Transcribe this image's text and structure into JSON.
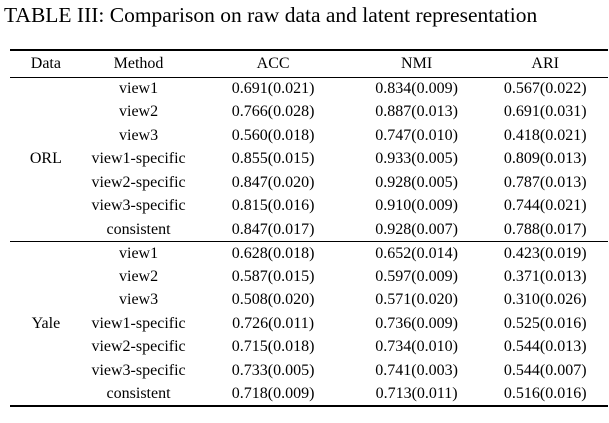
{
  "title": "TABLE III: Comparison on raw data and latent representation",
  "table": {
    "columns": [
      "Data",
      "Method",
      "ACC",
      "NMI",
      "ARI"
    ],
    "groups": [
      {
        "data": "ORL",
        "rows": [
          {
            "method": "view1",
            "acc": "0.691(0.021)",
            "nmi": "0.834(0.009)",
            "ari": "0.567(0.022)"
          },
          {
            "method": "view2",
            "acc": "0.766(0.028)",
            "nmi": "0.887(0.013)",
            "ari": "0.691(0.031)"
          },
          {
            "method": "view3",
            "acc": "0.560(0.018)",
            "nmi": "0.747(0.010)",
            "ari": "0.418(0.021)"
          },
          {
            "method": "view1-specific",
            "acc": "0.855(0.015)",
            "nmi": "0.933(0.005)",
            "ari": "0.809(0.013)"
          },
          {
            "method": "view2-specific",
            "acc": "0.847(0.020)",
            "nmi": "0.928(0.005)",
            "ari": "0.787(0.013)"
          },
          {
            "method": "view3-specific",
            "acc": "0.815(0.016)",
            "nmi": "0.910(0.009)",
            "ari": "0.744(0.021)"
          },
          {
            "method": "consistent",
            "acc": "0.847(0.017)",
            "nmi": "0.928(0.007)",
            "ari": "0.788(0.017)"
          }
        ]
      },
      {
        "data": "Yale",
        "rows": [
          {
            "method": "view1",
            "acc": "0.628(0.018)",
            "nmi": "0.652(0.014)",
            "ari": "0.423(0.019)"
          },
          {
            "method": "view2",
            "acc": "0.587(0.015)",
            "nmi": "0.597(0.009)",
            "ari": "0.371(0.013)"
          },
          {
            "method": "view3",
            "acc": "0.508(0.020)",
            "nmi": "0.571(0.020)",
            "ari": "0.310(0.026)"
          },
          {
            "method": "view1-specific",
            "acc": "0.726(0.011)",
            "nmi": "0.736(0.009)",
            "ari": "0.525(0.016)"
          },
          {
            "method": "view2-specific",
            "acc": "0.715(0.018)",
            "nmi": "0.734(0.010)",
            "ari": "0.544(0.013)"
          },
          {
            "method": "view3-specific",
            "acc": "0.733(0.005)",
            "nmi": "0.741(0.003)",
            "ari": "0.544(0.007)"
          },
          {
            "method": "consistent",
            "acc": "0.718(0.009)",
            "nmi": "0.713(0.011)",
            "ari": "0.516(0.016)"
          }
        ]
      }
    ]
  }
}
